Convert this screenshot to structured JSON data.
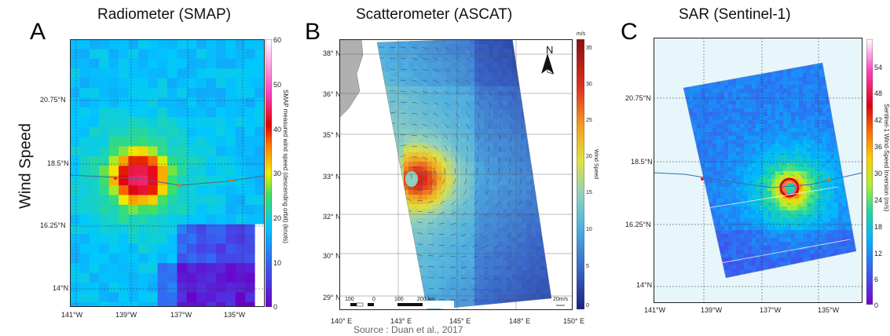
{
  "row_label": "Wind Speed",
  "panels": [
    {
      "letter": "A",
      "title": "Radiometer (SMAP)",
      "y_ticks": [
        "20.75°N",
        "18.5°N",
        "16.25°N",
        "14°N"
      ],
      "x_ticks": [
        "141°W",
        "139°W",
        "137°W",
        "135°W"
      ],
      "colorbar_label": "SMAP measured wind speed (descending orbit) (knots)",
      "colorbar_ticks": [
        "60",
        "50",
        "40",
        "30",
        "20",
        "10",
        "0"
      ]
    },
    {
      "letter": "B",
      "title": "Scatterometer (ASCAT)",
      "y_ticks": [
        "38° N",
        "36° N",
        "35° N",
        "33° N",
        "32° N",
        "30° N",
        "29° N"
      ],
      "x_ticks": [
        "140° E",
        "143° E",
        "145° E",
        "148° E",
        "150° E"
      ],
      "colorbar_units": "m/s",
      "colorbar_label": "Wind Speed",
      "colorbar_ticks": [
        "35",
        "30",
        "25",
        "20",
        "15",
        "10",
        "5",
        "0"
      ],
      "scalebar_labels": [
        "100",
        "0",
        "100",
        "200 km"
      ],
      "arrow_ref": "20m/s",
      "north": "N",
      "source": "Source : Duan et al., 2017"
    },
    {
      "letter": "C",
      "title": "SAR (Sentinel-1)",
      "y_ticks": [
        "20.75°N",
        "18.5°N",
        "16.25°N",
        "14°N"
      ],
      "x_ticks": [
        "141°W",
        "139°W",
        "137°W",
        "135°W"
      ],
      "colorbar_label": "Sentinel-1 Wind-Speed Inversion (m/s)",
      "colorbar_ticks": [
        "54",
        "48",
        "42",
        "36",
        "30",
        "24",
        "18",
        "12",
        "6",
        "0"
      ]
    }
  ]
}
